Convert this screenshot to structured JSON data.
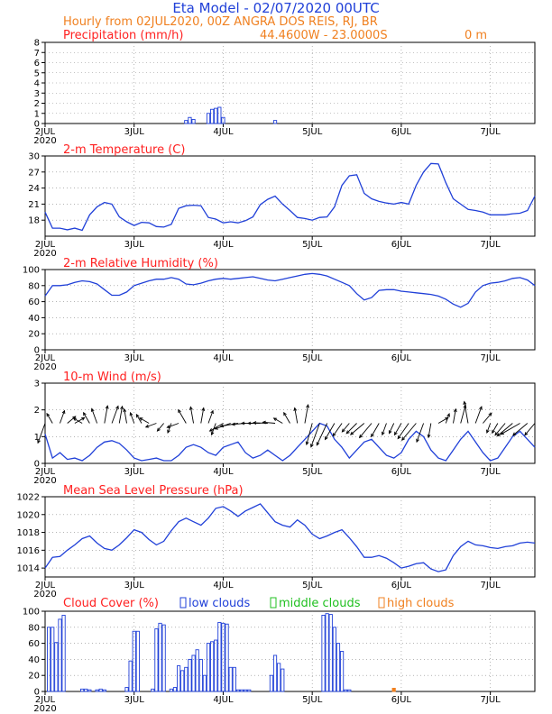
{
  "header": {
    "title": "Eta Model - 02/07/2020 00UTC",
    "subtitle": "Hourly from 02JUL2020, 00Z  ANGRA DOS REIS, RJ, BR",
    "coords": "44.4600W - 23.0000S",
    "elevation": "0   m"
  },
  "x_axis": {
    "labels": [
      "2JUL",
      "3JUL",
      "4JUL",
      "5JUL",
      "6JUL",
      "7JUL"
    ],
    "year": "2020",
    "range_hours": [
      0,
      132
    ]
  },
  "colors": {
    "line": "#2040d8",
    "title": "#ff2020",
    "orange": "#f08020",
    "green": "#20c020",
    "arrow": "#000000"
  },
  "chart_data": [
    {
      "type": "bar",
      "title": "Precipitation (mm/h)",
      "ylim": [
        0,
        8
      ],
      "yticks": [
        "0",
        "1",
        "2",
        "3",
        "4",
        "5",
        "6",
        "7",
        "8"
      ],
      "x_hours": [
        38,
        39,
        40,
        44,
        45,
        46,
        47,
        48,
        62
      ],
      "values": [
        0.3,
        0.6,
        0.4,
        1.0,
        1.4,
        1.5,
        1.6,
        0.6,
        0.3
      ]
    },
    {
      "type": "line",
      "title": "2-m Temperature (C)",
      "ylim": [
        15,
        30
      ],
      "yticks": [
        "18",
        "21",
        "24",
        "27",
        "30"
      ],
      "x_hours": [
        0,
        2,
        4,
        6,
        8,
        10,
        12,
        14,
        16,
        18,
        20,
        22,
        24,
        26,
        28,
        30,
        32,
        34,
        36,
        38,
        40,
        42,
        44,
        46,
        48,
        50,
        52,
        54,
        56,
        58,
        60,
        62,
        64,
        66,
        68,
        70,
        72,
        74,
        76,
        78,
        80,
        82,
        84,
        86,
        88,
        90,
        92,
        94,
        96,
        98,
        100,
        102,
        104,
        106,
        108,
        110,
        112,
        114,
        116,
        118,
        120,
        122,
        124,
        126,
        128,
        130,
        132
      ],
      "values": [
        19.5,
        16.5,
        16.5,
        16.2,
        16.5,
        16.1,
        19.0,
        20.5,
        21.3,
        21.0,
        18.6,
        17.7,
        17.0,
        17.6,
        17.5,
        16.8,
        16.7,
        17.2,
        20.2,
        20.7,
        20.8,
        20.7,
        18.5,
        18.2,
        17.5,
        17.7,
        17.5,
        17.9,
        18.6,
        20.9,
        21.9,
        22.5,
        21.0,
        19.8,
        18.5,
        18.3,
        18.0,
        18.5,
        18.6,
        20.5,
        24.5,
        26.3,
        26.5,
        23.0,
        22.0,
        21.5,
        21.2,
        21.0,
        21.3,
        21.0,
        24.5,
        27.0,
        28.6,
        28.5,
        25.0,
        22.0,
        21.0,
        20.0,
        19.8,
        19.5,
        19.0,
        19.0,
        19.0,
        19.2,
        19.3,
        19.8,
        22.5
      ]
    },
    {
      "type": "line",
      "title": "2-m Relative Humidity (%)",
      "ylim": [
        0,
        100
      ],
      "yticks": [
        "0",
        "20",
        "40",
        "60",
        "80",
        "100"
      ],
      "x_hours": [
        0,
        2,
        4,
        6,
        8,
        10,
        12,
        14,
        16,
        18,
        20,
        22,
        24,
        26,
        28,
        30,
        32,
        34,
        36,
        38,
        40,
        42,
        44,
        46,
        48,
        50,
        52,
        54,
        56,
        58,
        60,
        62,
        64,
        66,
        68,
        70,
        72,
        74,
        76,
        78,
        80,
        82,
        84,
        86,
        88,
        90,
        92,
        94,
        96,
        98,
        100,
        102,
        104,
        106,
        108,
        110,
        112,
        114,
        116,
        118,
        120,
        122,
        124,
        126,
        128,
        130,
        132
      ],
      "values": [
        67,
        80,
        80,
        81,
        84,
        86,
        85,
        82,
        75,
        68,
        68,
        72,
        80,
        83,
        86,
        88,
        88,
        90,
        88,
        82,
        81,
        83,
        86,
        88,
        89,
        88,
        89,
        90,
        91,
        89,
        87,
        86,
        88,
        90,
        92,
        94,
        95,
        94,
        92,
        88,
        84,
        80,
        70,
        62,
        65,
        74,
        75,
        75,
        73,
        72,
        71,
        70,
        69,
        67,
        63,
        57,
        53,
        58,
        72,
        80,
        83,
        84,
        86,
        89,
        90,
        87,
        80
      ]
    },
    {
      "type": "line",
      "title": "10-m Wind (m/s)",
      "ylim": [
        0,
        3
      ],
      "yticks": [
        "0",
        "1",
        "2",
        "3"
      ],
      "x_hours": [
        0,
        2,
        4,
        6,
        8,
        10,
        12,
        14,
        16,
        18,
        20,
        22,
        24,
        26,
        28,
        30,
        32,
        34,
        36,
        38,
        40,
        42,
        44,
        46,
        48,
        50,
        52,
        54,
        56,
        58,
        60,
        62,
        64,
        66,
        68,
        70,
        72,
        74,
        76,
        78,
        80,
        82,
        84,
        86,
        88,
        90,
        92,
        94,
        96,
        98,
        100,
        102,
        104,
        106,
        108,
        110,
        112,
        114,
        116,
        118,
        120,
        122,
        124,
        126,
        128,
        130,
        132
      ],
      "values": [
        1.1,
        0.2,
        0.4,
        0.15,
        0.2,
        0.1,
        0.3,
        0.6,
        0.8,
        0.85,
        0.75,
        0.5,
        0.2,
        0.1,
        0.15,
        0.2,
        0.1,
        0.1,
        0.3,
        0.6,
        0.7,
        0.6,
        0.4,
        0.3,
        0.6,
        0.7,
        0.8,
        0.4,
        0.2,
        0.3,
        0.5,
        0.3,
        0.1,
        0.3,
        0.6,
        0.9,
        1.2,
        1.5,
        1.4,
        0.9,
        0.6,
        0.2,
        0.5,
        0.8,
        0.9,
        0.6,
        0.3,
        0.2,
        0.4,
        0.9,
        1.2,
        1.0,
        0.5,
        0.2,
        0.1,
        0.5,
        0.9,
        1.2,
        0.8,
        0.4,
        0.1,
        0.2,
        0.6,
        1.0,
        1.2,
        0.9,
        0.6
      ],
      "arrow_hours": [
        0,
        2,
        4,
        6,
        8,
        10,
        12,
        14,
        16,
        18,
        20,
        22,
        24,
        26,
        28,
        30,
        32,
        34,
        36,
        38,
        40,
        42,
        44,
        46,
        48,
        50,
        52,
        54,
        56,
        58,
        60,
        62,
        64,
        66,
        68,
        70,
        72,
        74,
        76,
        78,
        80,
        82,
        84,
        86,
        88,
        90,
        92,
        94,
        96,
        98,
        100,
        102,
        104,
        106,
        108,
        110,
        112,
        114,
        116,
        118,
        120,
        122,
        124,
        126,
        128,
        130,
        132
      ],
      "arrow_dir_deg": [
        200,
        330,
        20,
        50,
        60,
        300,
        330,
        340,
        10,
        20,
        10,
        350,
        340,
        330,
        300,
        250,
        220,
        200,
        250,
        330,
        350,
        10,
        20,
        200,
        240,
        250,
        260,
        265,
        270,
        270,
        272,
        275,
        300,
        330,
        350,
        10,
        195,
        200,
        205,
        210,
        215,
        220,
        225,
        230,
        220,
        210,
        200,
        205,
        210,
        215,
        220,
        200,
        190,
        60,
        20,
        10,
        15,
        350,
        20,
        40,
        200,
        210,
        220,
        230,
        240,
        230,
        220
      ]
    },
    {
      "type": "line",
      "title": "Mean Sea Level Pressure (hPa)",
      "ylim": [
        1013,
        1022
      ],
      "yticks": [
        "1014",
        "1016",
        "1018",
        "1020",
        "1022"
      ],
      "x_hours": [
        0,
        2,
        4,
        6,
        8,
        10,
        12,
        14,
        16,
        18,
        20,
        22,
        24,
        26,
        28,
        30,
        32,
        34,
        36,
        38,
        40,
        42,
        44,
        46,
        48,
        50,
        52,
        54,
        56,
        58,
        60,
        62,
        64,
        66,
        68,
        70,
        72,
        74,
        76,
        78,
        80,
        82,
        84,
        86,
        88,
        90,
        92,
        94,
        96,
        98,
        100,
        102,
        104,
        106,
        108,
        110,
        112,
        114,
        116,
        118,
        120,
        122,
        124,
        126,
        128,
        130,
        132
      ],
      "values": [
        1014.0,
        1015.2,
        1015.3,
        1016.0,
        1016.6,
        1017.3,
        1017.6,
        1016.8,
        1016.2,
        1016.0,
        1016.6,
        1017.4,
        1018.3,
        1018.0,
        1017.2,
        1016.6,
        1017.0,
        1018.2,
        1019.2,
        1019.6,
        1019.2,
        1018.8,
        1019.6,
        1020.7,
        1020.9,
        1020.4,
        1019.8,
        1020.4,
        1020.8,
        1021.2,
        1020.2,
        1019.2,
        1018.8,
        1018.6,
        1019.4,
        1018.8,
        1017.8,
        1017.3,
        1017.6,
        1018.0,
        1018.3,
        1017.4,
        1016.4,
        1015.2,
        1015.2,
        1015.4,
        1015.1,
        1014.6,
        1014.0,
        1014.2,
        1014.5,
        1014.6,
        1013.9,
        1013.6,
        1013.8,
        1015.4,
        1016.4,
        1017.0,
        1016.6,
        1016.5,
        1016.3,
        1016.2,
        1016.4,
        1016.5,
        1016.8,
        1016.9,
        1016.8
      ]
    },
    {
      "type": "bar",
      "title": "Cloud Cover (%)",
      "ylim": [
        0,
        100
      ],
      "yticks": [
        "0",
        "20",
        "40",
        "60",
        "80",
        "100"
      ],
      "legend": [
        "low clouds",
        "middle clouds",
        "high clouds"
      ],
      "x_hours": [
        1,
        2,
        3,
        4,
        5,
        10,
        11,
        12,
        14,
        15,
        16,
        22,
        23,
        24,
        25,
        29,
        30,
        31,
        32,
        34,
        35,
        36,
        37,
        38,
        39,
        40,
        41,
        42,
        43,
        44,
        45,
        46,
        47,
        48,
        49,
        50,
        51,
        52,
        53,
        54,
        55,
        61,
        62,
        63,
        64,
        75,
        76,
        77,
        78,
        79,
        80,
        81,
        82
      ],
      "values": [
        80,
        80,
        61,
        90,
        95,
        3,
        3,
        2,
        2,
        3,
        2,
        5,
        38,
        75,
        75,
        3,
        78,
        85,
        83,
        3,
        5,
        32,
        26,
        30,
        40,
        45,
        52,
        40,
        20,
        60,
        62,
        64,
        86,
        85,
        84,
        30,
        30,
        2,
        2,
        2,
        2,
        20,
        45,
        35,
        28,
        95,
        97,
        96,
        80,
        60,
        50,
        2,
        2
      ],
      "high_cloud_x_hours": [
        94
      ],
      "high_cloud_values": [
        4
      ]
    }
  ]
}
